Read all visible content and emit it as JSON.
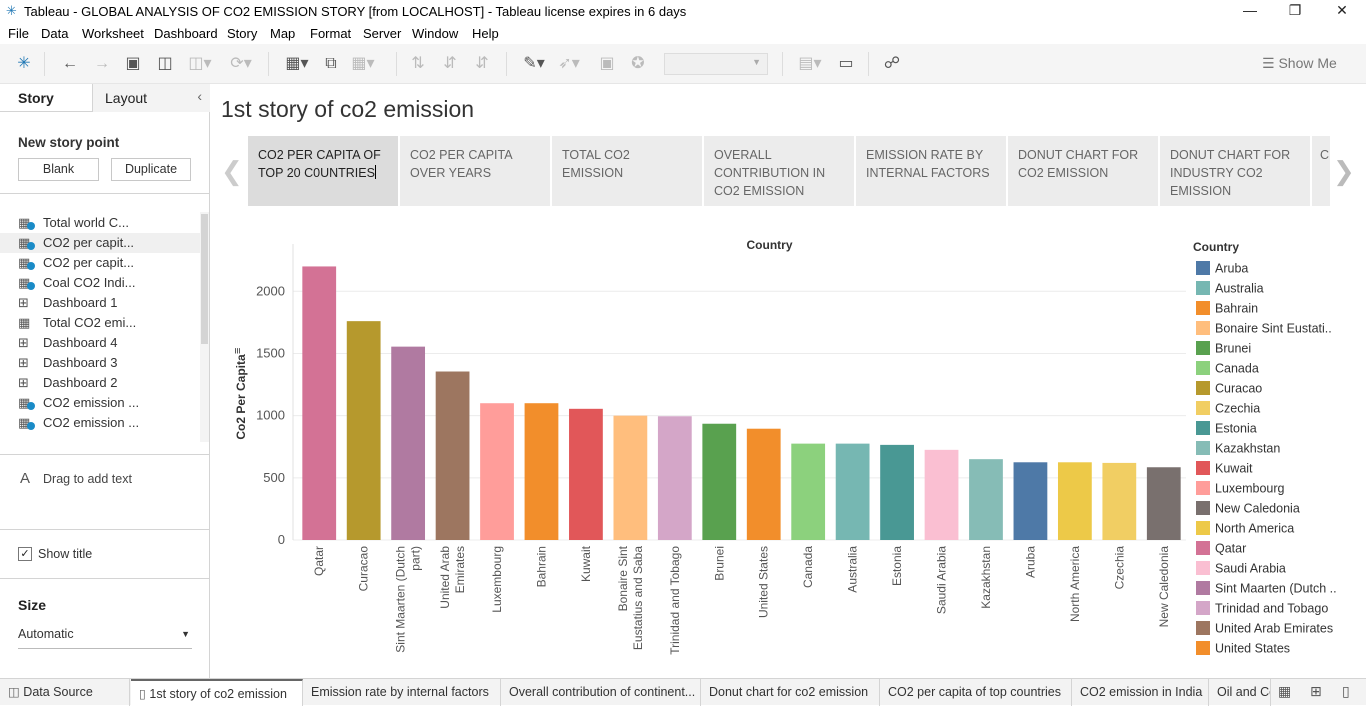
{
  "window": {
    "title": "Tableau - GLOBAL ANALYSIS OF CO2 EMISSION STORY [from LOCALHOST] - Tableau license expires in 6 days"
  },
  "menu": [
    "File",
    "Data",
    "Worksheet",
    "Dashboard",
    "Story",
    "Map",
    "Format",
    "Server",
    "Window",
    "Help"
  ],
  "toolbar": {
    "show_me": "Show Me"
  },
  "sidebar": {
    "tabs": [
      "Story",
      "Layout"
    ],
    "new_story_point": "New story point",
    "blank": "Blank",
    "duplicate": "Duplicate",
    "sheets": [
      {
        "label": "Total world C...",
        "icon": "worksheet"
      },
      {
        "label": "CO2 per capit...",
        "icon": "worksheet"
      },
      {
        "label": "CO2 per capit...",
        "icon": "worksheet"
      },
      {
        "label": "Coal CO2 Indi...",
        "icon": "worksheet"
      },
      {
        "label": "Dashboard 1",
        "icon": "dashboard"
      },
      {
        "label": "Total CO2 emi...",
        "icon": "worksheet"
      },
      {
        "label": "Dashboard 4",
        "icon": "dashboard"
      },
      {
        "label": "Dashboard 3",
        "icon": "dashboard"
      },
      {
        "label": "Dashboard 2",
        "icon": "dashboard"
      },
      {
        "label": "CO2 emission ...",
        "icon": "worksheet"
      },
      {
        "label": "CO2 emission ...",
        "icon": "worksheet"
      }
    ],
    "drag_text": "Drag to add text",
    "show_title": "Show title",
    "size_title": "Size",
    "size_value": "Automatic"
  },
  "story": {
    "title": "1st story of co2 emission",
    "points": [
      "CO2 PER CAPITA OF TOP 20 C0UNTRIES",
      "CO2 PER CAPITA OVER YEARS",
      "TOTAL CO2 EMISSION",
      "OVERALL CONTRIBUTION IN CO2 EMISSION",
      "EMISSION RATE BY INTERNAL FACTORS",
      "DONUT CHART FOR CO2 EMISSION",
      "DONUT CHART FOR INDUSTRY CO2 EMISSION",
      "C"
    ]
  },
  "chart_data": {
    "type": "bar",
    "title": "Country",
    "ylabel": "Co2 Per Capita",
    "ylim": [
      0,
      2300
    ],
    "yticks": [
      0,
      500,
      1000,
      1500,
      2000
    ],
    "categories": [
      "Qatar",
      "Curacao",
      "Sint Maarten (Dutch part)",
      "United Arab Emirates",
      "Luxembourg",
      "Bahrain",
      "Kuwait",
      "Bonaire Sint Eustatius and Saba",
      "Trinidad and Tobago",
      "Brunei",
      "United States",
      "Canada",
      "Australia",
      "Estonia",
      "Saudi Arabia",
      "Kazakhstan",
      "Aruba",
      "North America",
      "Czechia",
      "New Caledonia"
    ],
    "category_labels": [
      [
        "Qatar"
      ],
      [
        "Curacao"
      ],
      [
        "Sint Maarten (Dutch",
        "part)"
      ],
      [
        "United Arab",
        "Emirates"
      ],
      [
        "Luxembourg"
      ],
      [
        "Bahrain"
      ],
      [
        "Kuwait"
      ],
      [
        "Bonaire Sint",
        "Eustatius and Saba"
      ],
      [
        "Trinidad and Tobago"
      ],
      [
        "Brunei"
      ],
      [
        "United States"
      ],
      [
        "Canada"
      ],
      [
        "Australia"
      ],
      [
        "Estonia"
      ],
      [
        "Saudi Arabia"
      ],
      [
        "Kazakhstan"
      ],
      [
        "Aruba"
      ],
      [
        "North America"
      ],
      [
        "Czechia"
      ],
      [
        "New Caledonia"
      ]
    ],
    "values": [
      2200,
      1760,
      1555,
      1355,
      1100,
      1100,
      1055,
      1000,
      995,
      935,
      895,
      775,
      775,
      765,
      725,
      650,
      625,
      625,
      620,
      585
    ],
    "colors": [
      "#d37295",
      "#b6992d",
      "#b07aa1",
      "#9d7660",
      "#ff9d9a",
      "#f28e2b",
      "#e15759",
      "#ffbe7d",
      "#d4a6c8",
      "#59a14f",
      "#f28e2b",
      "#8cd17d",
      "#76b7b2",
      "#499894",
      "#fabfd2",
      "#86bcb6",
      "#4e79a7",
      "#edc948",
      "#f1ce63",
      "#79706e"
    ],
    "legend": {
      "title": "Country",
      "placement": "right",
      "items": [
        {
          "label": "Aruba",
          "color": "#4e79a7"
        },
        {
          "label": "Australia",
          "color": "#76b7b2"
        },
        {
          "label": "Bahrain",
          "color": "#f28e2b"
        },
        {
          "label": "Bonaire Sint Eustati..",
          "color": "#ffbe7d"
        },
        {
          "label": "Brunei",
          "color": "#59a14f"
        },
        {
          "label": "Canada",
          "color": "#8cd17d"
        },
        {
          "label": "Curacao",
          "color": "#b6992d"
        },
        {
          "label": "Czechia",
          "color": "#f1ce63"
        },
        {
          "label": "Estonia",
          "color": "#499894"
        },
        {
          "label": "Kazakhstan",
          "color": "#86bcb6"
        },
        {
          "label": "Kuwait",
          "color": "#e15759"
        },
        {
          "label": "Luxembourg",
          "color": "#ff9d9a"
        },
        {
          "label": "New Caledonia",
          "color": "#79706e"
        },
        {
          "label": "North America",
          "color": "#edc948"
        },
        {
          "label": "Qatar",
          "color": "#d37295"
        },
        {
          "label": "Saudi Arabia",
          "color": "#fabfd2"
        },
        {
          "label": "Sint Maarten (Dutch ..",
          "color": "#b07aa1"
        },
        {
          "label": "Trinidad and Tobago",
          "color": "#d4a6c8"
        },
        {
          "label": "United Arab Emirates",
          "color": "#9d7660"
        },
        {
          "label": "United States",
          "color": "#f28e2b"
        }
      ]
    },
    "grid": true
  },
  "bottom_tabs": [
    "Data Source",
    "1st story of co2 emission",
    "Emission rate by internal factors",
    "Overall contribution of continent...",
    "Donut chart for co2 emission",
    "CO2 per capita of top countries",
    "CO2 emission in India",
    "Oil and Co"
  ]
}
